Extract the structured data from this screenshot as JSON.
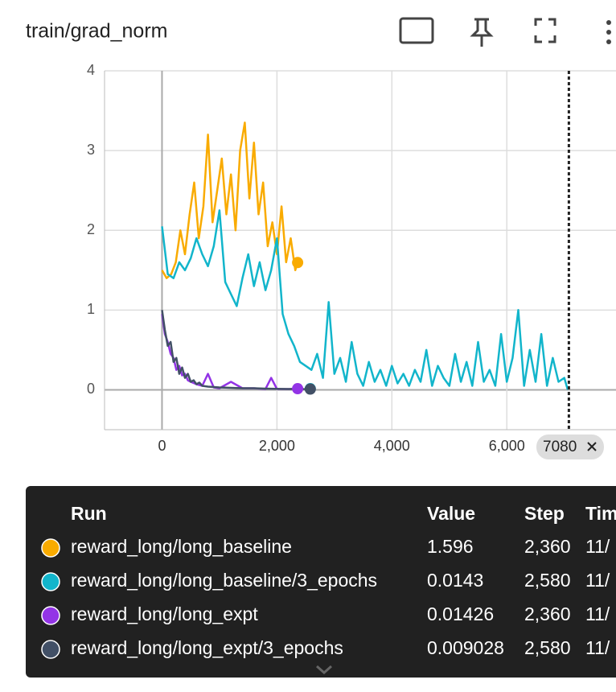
{
  "chart_data": {
    "type": "line",
    "title": "train/grad_norm",
    "xlim": [
      -1000,
      7900
    ],
    "ylim": [
      -0.5,
      4
    ],
    "xticks": [
      0,
      {
        "value": 2000,
        "label": "2,000"
      },
      {
        "value": 4000,
        "label": "4,000"
      },
      {
        "value": 6000,
        "label": "6,000"
      }
    ],
    "yticks": [
      0,
      1,
      2,
      3,
      4
    ],
    "grid": true,
    "cursor": 7080,
    "series": [
      {
        "name": "reward_long/long_baseline",
        "color": "#f9ab00",
        "x": [
          0,
          80,
          160,
          240,
          320,
          400,
          480,
          560,
          640,
          720,
          800,
          880,
          960,
          1040,
          1120,
          1200,
          1280,
          1360,
          1440,
          1520,
          1600,
          1680,
          1760,
          1840,
          1920,
          2000,
          2080,
          2160,
          2240,
          2320,
          2360
        ],
        "values": [
          1.5,
          1.4,
          1.45,
          1.6,
          2.0,
          1.7,
          2.2,
          2.6,
          1.9,
          2.3,
          3.2,
          2.1,
          2.5,
          2.9,
          2.2,
          2.7,
          2.0,
          3.0,
          3.35,
          2.4,
          3.1,
          2.2,
          2.6,
          1.8,
          2.1,
          1.7,
          2.3,
          1.6,
          1.9,
          1.5,
          1.596
        ]
      },
      {
        "name": "reward_long/long_baseline/3_epochs",
        "color": "#12b5cb",
        "x": [
          0,
          100,
          200,
          300,
          400,
          500,
          600,
          700,
          800,
          900,
          1000,
          1100,
          1200,
          1300,
          1400,
          1500,
          1600,
          1700,
          1800,
          1900,
          2000,
          2100,
          2200,
          2300,
          2400,
          2500,
          2600,
          2700,
          2800,
          2900,
          3000,
          3100,
          3200,
          3300,
          3400,
          3500,
          3600,
          3700,
          3800,
          3900,
          4000,
          4100,
          4200,
          4300,
          4400,
          4500,
          4600,
          4700,
          4800,
          4900,
          5000,
          5100,
          5200,
          5300,
          5400,
          5500,
          5600,
          5700,
          5800,
          5900,
          6000,
          6100,
          6200,
          6300,
          6400,
          6500,
          6600,
          6700,
          6800,
          6900,
          7000,
          7060
        ],
        "values": [
          2.05,
          1.45,
          1.4,
          1.6,
          1.5,
          1.65,
          1.9,
          1.7,
          1.55,
          1.8,
          2.25,
          1.35,
          1.2,
          1.05,
          1.4,
          1.7,
          1.3,
          1.6,
          1.25,
          1.5,
          1.9,
          0.95,
          0.7,
          0.55,
          0.35,
          0.3,
          0.25,
          0.45,
          0.15,
          1.1,
          0.2,
          0.4,
          0.1,
          0.6,
          0.2,
          0.05,
          0.35,
          0.1,
          0.25,
          0.05,
          0.3,
          0.08,
          0.2,
          0.05,
          0.25,
          0.1,
          0.5,
          0.05,
          0.3,
          0.15,
          0.05,
          0.45,
          0.1,
          0.35,
          0.05,
          0.6,
          0.1,
          0.25,
          0.05,
          0.7,
          0.1,
          0.4,
          1.0,
          0.05,
          0.5,
          0.1,
          0.7,
          0.05,
          0.4,
          0.1,
          0.15,
          0
        ]
      },
      {
        "name": "reward_long/long_expt",
        "color": "#9334e6",
        "x": [
          0,
          50,
          100,
          150,
          200,
          250,
          300,
          350,
          400,
          450,
          500,
          600,
          700,
          800,
          900,
          1000,
          1200,
          1400,
          1600,
          1800,
          1900,
          2000,
          2200,
          2360
        ],
        "values": [
          0.95,
          0.7,
          0.6,
          0.45,
          0.4,
          0.25,
          0.3,
          0.18,
          0.2,
          0.12,
          0.1,
          0.07,
          0.05,
          0.2,
          0.03,
          0.02,
          0.1,
          0.02,
          0.02,
          0.01,
          0.15,
          0.01,
          0.01,
          0.01426
        ]
      },
      {
        "name": "reward_long/long_expt/3_epochs",
        "color": "#425066",
        "x": [
          0,
          50,
          100,
          150,
          200,
          250,
          300,
          350,
          400,
          450,
          500,
          550,
          600,
          650,
          700,
          800,
          1000,
          1200,
          1400,
          1600,
          1800,
          2000,
          2200,
          2400,
          2580
        ],
        "values": [
          1.0,
          0.75,
          0.55,
          0.6,
          0.35,
          0.4,
          0.2,
          0.28,
          0.15,
          0.2,
          0.1,
          0.12,
          0.07,
          0.09,
          0.05,
          0.04,
          0.03,
          0.025,
          0.02,
          0.02,
          0.015,
          0.012,
          0.01,
          0.01,
          0.009
        ]
      }
    ],
    "table": {
      "columns": [
        "Run",
        "Value",
        "Step",
        "Time"
      ],
      "rows": [
        {
          "value": 1.596,
          "step": {
            "value": 2360,
            "label": "2,360"
          },
          "time": "11/"
        },
        {
          "value": 0.0143,
          "step": {
            "value": 2580,
            "label": "2,580"
          },
          "time": "11/"
        },
        {
          "value": 0.01426,
          "step": {
            "value": 2360,
            "label": "2,360"
          },
          "time": "11/"
        },
        {
          "value": 0.009028,
          "step": {
            "value": 2580,
            "label": "2,580"
          },
          "time": "11/"
        }
      ]
    }
  }
}
